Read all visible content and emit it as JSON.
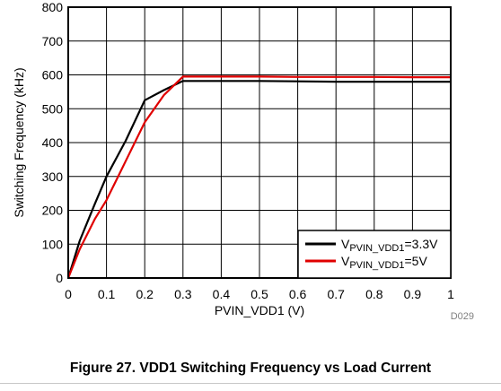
{
  "chart_data": {
    "type": "line",
    "title": "",
    "xlabel": "PVIN_VDD1 (V)",
    "ylabel": "Switching Frequency (kHz)",
    "xlim": [
      0,
      1
    ],
    "ylim": [
      0,
      800
    ],
    "x_ticks": [
      "0",
      "0.1",
      "0.2",
      "0.3",
      "0.4",
      "0.5",
      "0.6",
      "0.7",
      "0.8",
      "0.9",
      "1"
    ],
    "y_ticks": [
      "0",
      "100",
      "200",
      "300",
      "400",
      "500",
      "600",
      "700",
      "800"
    ],
    "grid": true,
    "legend_position": "bottom-right",
    "series": [
      {
        "name_prefix": "V",
        "name_subscript": "PVIN_VDD1",
        "name_suffix": "=3.3V",
        "color": "#000000",
        "x": [
          0,
          0.03,
          0.07,
          0.1,
          0.15,
          0.2,
          0.25,
          0.3,
          0.4,
          0.5,
          0.6,
          0.7,
          0.8,
          0.9,
          1.0
        ],
        "y": [
          0,
          110,
          220,
          300,
          405,
          525,
          555,
          582,
          582,
          582,
          581,
          580,
          580,
          580,
          580
        ]
      },
      {
        "name_prefix": "V",
        "name_subscript": "PVIN_VDD1",
        "name_suffix": "=5V",
        "color": "#e00000",
        "x": [
          0,
          0.03,
          0.07,
          0.1,
          0.15,
          0.2,
          0.25,
          0.3,
          0.4,
          0.5,
          0.6,
          0.7,
          0.8,
          0.9,
          1.0
        ],
        "y": [
          0,
          85,
          175,
          230,
          345,
          460,
          540,
          595,
          595,
          595,
          594,
          594,
          594,
          593,
          593
        ]
      }
    ]
  },
  "figure_id": "D029",
  "caption": "Figure 27. VDD1 Switching Frequency vs Load Current"
}
